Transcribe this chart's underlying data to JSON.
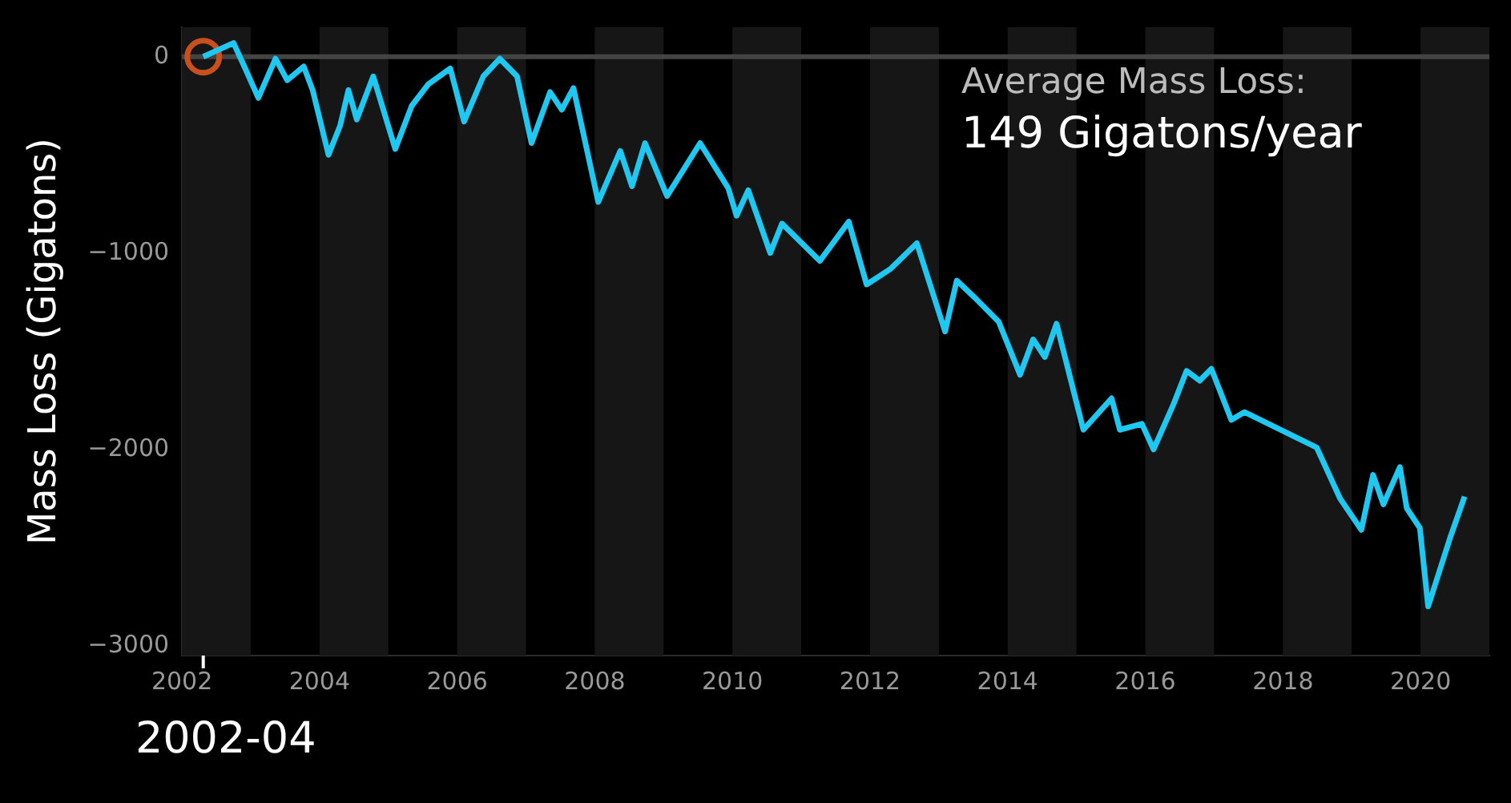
{
  "chart_data": {
    "type": "line",
    "ylabel": "Mass Loss (Gigatons)",
    "xlim": [
      2002,
      2021
    ],
    "xticks": [
      2002,
      2004,
      2006,
      2008,
      2010,
      2012,
      2014,
      2016,
      2018,
      2020
    ],
    "ylim": [
      -3050,
      150
    ],
    "yticks": [
      0,
      -1000,
      -2000,
      -3000
    ],
    "grid": false,
    "legend": false,
    "series": [
      {
        "type": "line",
        "color": "#1ec8f0",
        "marker": "none",
        "x": [
          2002.31,
          2002.75,
          2002.92,
          2003.11,
          2003.36,
          2003.53,
          2003.77,
          2003.9,
          2004.13,
          2004.3,
          2004.42,
          2004.54,
          2004.78,
          2005.1,
          2005.34,
          2005.58,
          2005.9,
          2006.1,
          2006.38,
          2006.62,
          2006.87,
          2007.08,
          2007.35,
          2007.52,
          2007.69,
          2008.05,
          2008.37,
          2008.54,
          2008.73,
          2009.05,
          2009.53,
          2009.94,
          2010.06,
          2010.23,
          2010.55,
          2010.72,
          2011.27,
          2011.69,
          2011.95,
          2012.3,
          2012.68,
          2013.09,
          2013.26,
          2013.53,
          2013.87,
          2014.18,
          2014.37,
          2014.54,
          2014.71,
          2015.1,
          2015.51,
          2015.63,
          2015.95,
          2016.12,
          2016.41,
          2016.6,
          2016.79,
          2016.96,
          2017.25,
          2017.44,
          2018.49,
          2018.83,
          2019.14,
          2019.31,
          2019.46,
          2019.7,
          2019.8,
          2019.99,
          2020.11,
          2020.43,
          2020.64
        ],
        "values": [
          0,
          70,
          -60,
          -210,
          -10,
          -120,
          -50,
          -170,
          -500,
          -350,
          -170,
          -320,
          -100,
          -470,
          -250,
          -140,
          -60,
          -330,
          -100,
          -10,
          -100,
          -440,
          -180,
          -270,
          -160,
          -740,
          -480,
          -660,
          -440,
          -710,
          -440,
          -670,
          -810,
          -680,
          -1000,
          -850,
          -1040,
          -840,
          -1160,
          -1080,
          -950,
          -1400,
          -1140,
          -1230,
          -1350,
          -1620,
          -1440,
          -1530,
          -1360,
          -1900,
          -1740,
          -1900,
          -1870,
          -2000,
          -1770,
          -1600,
          -1650,
          -1590,
          -1850,
          -1810,
          -1990,
          -2250,
          -2410,
          -2130,
          -2280,
          -2090,
          -2300,
          -2400,
          -2800,
          -2450,
          -2240
        ]
      },
      {
        "type": "scatter",
        "color": "#c8501e",
        "marker": "circle",
        "x": [
          2002.31
        ],
        "values": [
          0
        ]
      }
    ],
    "ref_lines": [
      {
        "axis": "y",
        "value": 0,
        "color": "#444444"
      }
    ],
    "bands": [
      {
        "axis": "x",
        "from": 2002,
        "to": 2003,
        "color": "#161616"
      },
      {
        "axis": "x",
        "from": 2004,
        "to": 2005,
        "color": "#161616"
      },
      {
        "axis": "x",
        "from": 2006,
        "to": 2007,
        "color": "#161616"
      },
      {
        "axis": "x",
        "from": 2008,
        "to": 2009,
        "color": "#161616"
      },
      {
        "axis": "x",
        "from": 2010,
        "to": 2011,
        "color": "#161616"
      },
      {
        "axis": "x",
        "from": 2012,
        "to": 2013,
        "color": "#161616"
      },
      {
        "axis": "x",
        "from": 2014,
        "to": 2015,
        "color": "#161616"
      },
      {
        "axis": "x",
        "from": 2016,
        "to": 2017,
        "color": "#161616"
      },
      {
        "axis": "x",
        "from": 2018,
        "to": 2019,
        "color": "#161616"
      },
      {
        "axis": "x",
        "from": 2020,
        "to": 2021,
        "color": "#161616"
      }
    ],
    "annotations": [
      "Average Mass Loss:",
      "149 Gigatons/year",
      {
        "text": "2002-04",
        "x": 2002.31,
        "y": -3050
      }
    ]
  }
}
